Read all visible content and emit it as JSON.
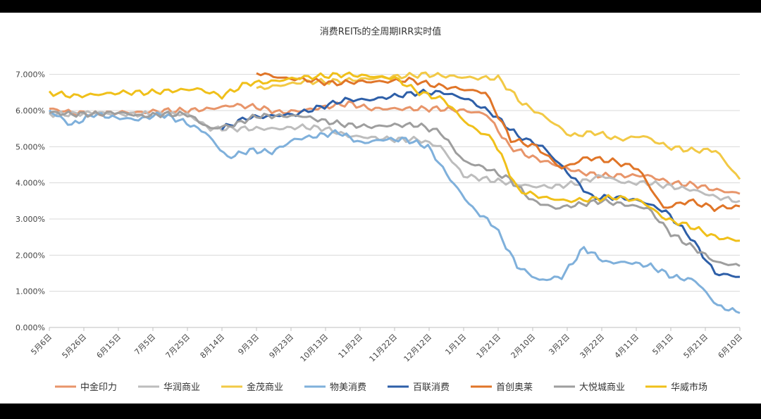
{
  "chart_data": {
    "type": "line",
    "title": "消费REITs的全周期IRR实时值",
    "y_ticks": [
      "0.000%",
      "1.000%",
      "2.000%",
      "3.000%",
      "4.000%",
      "5.000%",
      "6.000%",
      "7.000%"
    ],
    "x_ticks": [
      "5月6日",
      "5月26日",
      "6月15日",
      "7月5日",
      "7月25日",
      "8月14日",
      "9月3日",
      "9月23日",
      "10月13日",
      "11月2日",
      "11月22日",
      "12月12日",
      "1月1日",
      "1月21日",
      "2月10日",
      "3月2日",
      "3月22日",
      "4月11日",
      "5月1日",
      "5月21日",
      "6月10日"
    ],
    "ylim": [
      0,
      7.5
    ],
    "grid": true,
    "legend_position": "bottom",
    "series": [
      {
        "name": "中金印力",
        "color": "#E8956A",
        "start": 0,
        "values": [
          6.05,
          5.95,
          5.9,
          5.95,
          5.95,
          6.0,
          6.0,
          6.05,
          6.15,
          6.1,
          5.95,
          6.0,
          6.1,
          6.2,
          6.05,
          6.05,
          6.05,
          6.05,
          6.0,
          5.9,
          5.0,
          4.7,
          4.5,
          4.3,
          4.2,
          4.2,
          4.2,
          4.0,
          3.95,
          3.8,
          3.7
        ]
      },
      {
        "name": "华润商业",
        "color": "#BDBDBD",
        "start": 0,
        "values": [
          5.9,
          5.9,
          5.95,
          5.9,
          5.9,
          5.9,
          5.9,
          5.5,
          5.5,
          5.5,
          5.5,
          5.55,
          5.5,
          5.3,
          5.25,
          5.2,
          5.2,
          5.0,
          4.2,
          4.1,
          4.0,
          3.9,
          3.9,
          4.0,
          4.2,
          4.0,
          4.0,
          3.9,
          3.8,
          3.6,
          3.5
        ]
      },
      {
        "name": "金茂商业",
        "color": "#F2C945",
        "start": 6,
        "values": [
          6.6,
          6.7,
          6.8,
          6.8,
          6.85,
          6.9,
          6.95,
          7.0,
          6.95,
          6.9,
          6.9,
          6.2,
          5.8,
          5.3,
          5.4,
          5.2,
          5.3,
          5.0,
          4.9,
          4.9,
          4.1
        ]
      },
      {
        "name": "物美消费",
        "color": "#7FB0DB",
        "start": 0,
        "values": [
          6.0,
          5.6,
          5.9,
          5.8,
          5.75,
          5.9,
          5.7,
          5.4,
          4.7,
          4.9,
          4.85,
          5.2,
          5.3,
          5.4,
          5.1,
          5.2,
          5.2,
          5.0,
          4.1,
          3.3,
          2.8,
          1.7,
          1.3,
          1.4,
          2.2,
          1.8,
          1.8,
          1.7,
          1.4,
          1.3,
          0.6,
          0.4
        ]
      },
      {
        "name": "百联消费",
        "color": "#2E5FA8",
        "start": 5,
        "values": [
          5.5,
          5.8,
          5.85,
          5.9,
          6.1,
          6.3,
          6.3,
          6.4,
          6.5,
          6.5,
          6.3,
          5.9,
          5.3,
          5.0,
          4.3,
          3.6,
          3.6,
          3.5,
          3.2,
          2.5,
          1.5,
          1.4
        ]
      },
      {
        "name": "首创奥莱",
        "color": "#E07528",
        "start": 6,
        "values": [
          7.05,
          6.9,
          6.85,
          6.75,
          6.8,
          6.8,
          6.85,
          6.7,
          6.6,
          6.5,
          5.2,
          5.0,
          4.4,
          4.7,
          4.6,
          4.4,
          3.3,
          3.5,
          3.3,
          3.35
        ]
      },
      {
        "name": "大悦城商业",
        "color": "#9E9E9E",
        "start": 0,
        "values": [
          5.95,
          5.9,
          5.9,
          5.95,
          5.85,
          5.9,
          5.9,
          5.5,
          5.6,
          5.85,
          5.85,
          5.85,
          5.7,
          5.6,
          5.55,
          5.6,
          5.6,
          5.4,
          4.6,
          4.4,
          4.1,
          3.5,
          3.3,
          3.4,
          3.5,
          3.4,
          3.3,
          2.6,
          2.2,
          1.8,
          1.7
        ]
      },
      {
        "name": "华威市场",
        "color": "#F0C01A",
        "start": 0,
        "values": [
          6.5,
          6.4,
          6.45,
          6.5,
          6.5,
          6.55,
          6.6,
          6.4,
          6.75,
          6.8,
          6.9,
          6.95,
          7.0,
          6.95,
          6.9,
          6.5,
          6.3,
          5.6,
          5.2,
          3.8,
          3.6,
          3.5,
          3.55,
          3.6,
          3.5,
          3.0,
          2.8,
          2.5,
          2.4
        ]
      }
    ]
  }
}
